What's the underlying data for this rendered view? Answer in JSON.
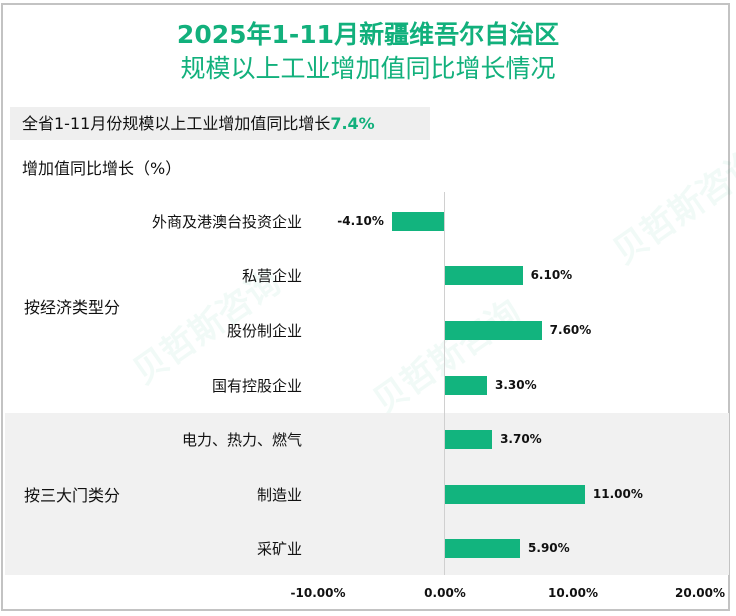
{
  "title": {
    "line1": "2025年1-11月新疆维吾尔自治区",
    "line2": "规模以上工业增加值同比增长情况"
  },
  "summary": {
    "text": "全省1-11月份规模以上工业增加值同比增长",
    "highlight": "7.4%"
  },
  "y_axis_title": "增加值同比增长（%）",
  "groups": [
    {
      "label": "按经济类型分"
    },
    {
      "label": "按三大门类分"
    }
  ],
  "bars": [
    {
      "label": "外商及港澳台投资企业",
      "value": -4.1,
      "display": "-4.10%"
    },
    {
      "label": "私营企业",
      "value": 6.1,
      "display": "6.10%"
    },
    {
      "label": "股份制企业",
      "value": 7.6,
      "display": "7.60%"
    },
    {
      "label": "国有控股企业",
      "value": 3.3,
      "display": "3.30%"
    },
    {
      "label": "电力、热力、燃气",
      "value": 3.7,
      "display": "3.70%"
    },
    {
      "label": "制造业",
      "value": 11.0,
      "display": "11.00%"
    },
    {
      "label": "采矿业",
      "value": 5.9,
      "display": "5.90%"
    }
  ],
  "x_ticks": [
    "-10.00%",
    "0.00%",
    "10.00%",
    "20.00%"
  ],
  "watermark": {
    "cn": "贝哲斯咨询",
    "en": "MARKET MONITOR"
  },
  "colors": {
    "bar": "#12b47e",
    "title": "#12b07c",
    "band": "#f1f1f1"
  },
  "chart_data": {
    "type": "bar",
    "orientation": "horizontal",
    "title": "2025年1-11月新疆维吾尔自治区规模以上工业增加值同比增长情况",
    "subtitle": "全省1-11月份规模以上工业增加值同比增长7.4%",
    "xlabel": "",
    "ylabel": "增加值同比增长（%）",
    "categories": [
      "外商及港澳台投资企业",
      "私营企业",
      "股份制企业",
      "国有控股企业",
      "电力、热力、燃气",
      "制造业",
      "采矿业"
    ],
    "groups": [
      {
        "name": "按经济类型分",
        "categories": [
          "外商及港澳台投资企业",
          "私营企业",
          "股份制企业",
          "国有控股企业"
        ]
      },
      {
        "name": "按三大门类分",
        "categories": [
          "电力、热力、燃气",
          "制造业",
          "采矿业"
        ]
      }
    ],
    "values": [
      -4.1,
      6.1,
      7.6,
      3.3,
      3.7,
      11.0,
      5.9
    ],
    "unit": "%",
    "xlim": [
      -10,
      20
    ],
    "x_ticks": [
      -10,
      0,
      10,
      20
    ],
    "grid": false,
    "legend": null
  }
}
